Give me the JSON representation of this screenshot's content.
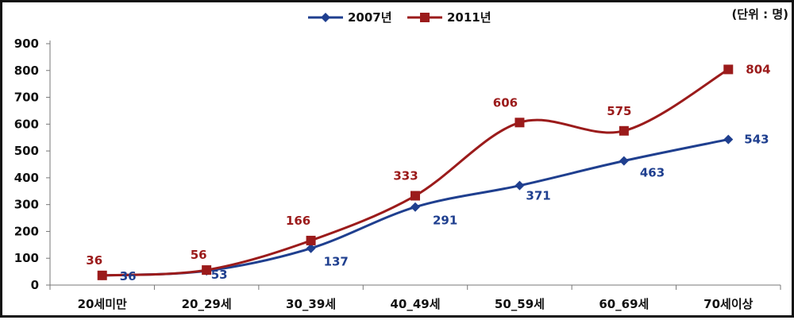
{
  "chart_data": {
    "type": "line",
    "unit_note": "(단위 : 명)",
    "categories": [
      "20세미만",
      "20_29세",
      "30_39세",
      "40_49세",
      "50_59세",
      "60_69세",
      "70세이상"
    ],
    "series": [
      {
        "name": "2007년",
        "color": "#1f3f8f",
        "marker": "diamond",
        "values": [
          36,
          53,
          137,
          291,
          371,
          463,
          543
        ]
      },
      {
        "name": "2011년",
        "color": "#9b1b1b",
        "marker": "square",
        "values": [
          36,
          56,
          166,
          333,
          606,
          575,
          804
        ]
      }
    ],
    "ylim": [
      0,
      900
    ],
    "yticks": [
      0,
      100,
      200,
      300,
      400,
      500,
      600,
      700,
      800,
      900
    ],
    "legend_position": "top-center",
    "grid": false,
    "title": "",
    "xlabel": "",
    "ylabel": ""
  }
}
